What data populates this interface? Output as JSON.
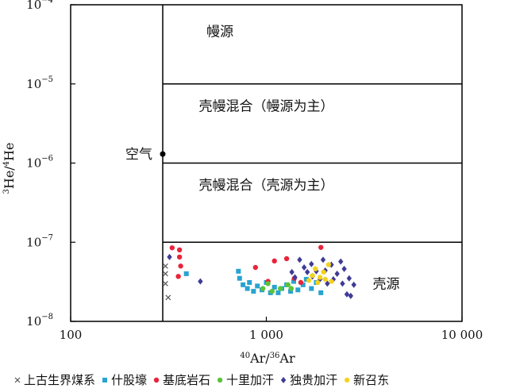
{
  "chart_data": {
    "type": "scatter",
    "x_scale": "log",
    "y_scale": "log",
    "xlim": [
      100,
      10000
    ],
    "ylim": [
      1e-08,
      0.0001
    ],
    "xlabel_parts": [
      "40",
      "Ar/",
      "36",
      "Ar"
    ],
    "ylabel_parts": [
      "3",
      "He/",
      "4",
      "He"
    ],
    "x_ticks": [
      {
        "value": 100,
        "label": "100"
      },
      {
        "value": 1000,
        "label": "1 000"
      },
      {
        "value": 10000,
        "label": "10 000"
      }
    ],
    "y_ticks": [
      {
        "value": 1e-08,
        "base": "10",
        "exp": "−8"
      },
      {
        "value": 1e-07,
        "base": "10",
        "exp": "−7"
      },
      {
        "value": 1e-06,
        "base": "10",
        "exp": "−6"
      },
      {
        "value": 1e-05,
        "base": "10",
        "exp": "−5"
      },
      {
        "value": 0.0001,
        "base": "10",
        "exp": "−4"
      }
    ],
    "air_point": {
      "label": "空气",
      "x": 295.5,
      "y": 1.3e-06
    },
    "regions": [
      {
        "label": "幔源",
        "x": 580,
        "y": 4.6e-05
      },
      {
        "label": "壳幔混合（幔源为主）",
        "x": 1000,
        "y": 5.3e-06
      },
      {
        "label": "壳幔混合（壳源为主）",
        "x": 1000,
        "y": 5.3e-07
      },
      {
        "label": "壳源",
        "x": 4100,
        "y": 3e-08
      }
    ],
    "series": [
      {
        "name": "上古生界煤系",
        "marker": "x",
        "color": "#555555",
        "points": [
          [
            305,
            5e-08
          ],
          [
            305,
            4e-08
          ],
          [
            305,
            3e-08
          ],
          [
            315,
            2e-08
          ]
        ]
      },
      {
        "name": "什股壕",
        "marker": "square",
        "color": "#29a3cf",
        "points": [
          [
            390,
            4e-08
          ],
          [
            720,
            4.3e-08
          ],
          [
            730,
            3.5e-08
          ],
          [
            760,
            2.9e-08
          ],
          [
            800,
            2.6e-08
          ],
          [
            820,
            3.1e-08
          ],
          [
            860,
            2.4e-08
          ],
          [
            900,
            2.8e-08
          ],
          [
            950,
            2.5e-08
          ],
          [
            1000,
            3.1e-08
          ],
          [
            1050,
            2.3e-08
          ],
          [
            1100,
            2.7e-08
          ],
          [
            1150,
            2.3e-08
          ],
          [
            1200,
            2.6e-08
          ],
          [
            1270,
            2.9e-08
          ],
          [
            1330,
            2.4e-08
          ],
          [
            1380,
            3.2e-08
          ],
          [
            1450,
            2.5e-08
          ],
          [
            1540,
            2.9e-08
          ],
          [
            1600,
            3.4e-08
          ],
          [
            1700,
            2.6e-08
          ],
          [
            1800,
            3.1e-08
          ],
          [
            1900,
            2.3e-08
          ]
        ]
      },
      {
        "name": "基底岩石",
        "marker": "circle",
        "color": "#e8243a",
        "points": [
          [
            330,
            8.5e-08
          ],
          [
            360,
            8e-08
          ],
          [
            360,
            6.5e-08
          ],
          [
            365,
            5e-08
          ],
          [
            355,
            3.7e-08
          ],
          [
            880,
            4.8e-08
          ],
          [
            1020,
            3.2e-08
          ],
          [
            1100,
            5.8e-08
          ],
          [
            1270,
            6.2e-08
          ],
          [
            1390,
            3.5e-08
          ],
          [
            1500,
            3.1e-08
          ],
          [
            1900,
            8.6e-08
          ]
        ]
      },
      {
        "name": "十里加汗",
        "marker": "circle",
        "color": "#5cc33a",
        "points": [
          [
            960,
            2.6e-08
          ],
          [
            1020,
            3e-08
          ],
          [
            1070,
            2.4e-08
          ],
          [
            1180,
            2.6e-08
          ],
          [
            1290,
            2.9e-08
          ],
          [
            1340,
            2.6e-08
          ]
        ]
      },
      {
        "name": "独贵加汗",
        "marker": "diamond",
        "color": "#3f3b96",
        "points": [
          [
            320,
            6.5e-08
          ],
          [
            460,
            3.2e-08
          ],
          [
            1350,
            4.2e-08
          ],
          [
            1400,
            3.6e-08
          ],
          [
            1480,
            6e-08
          ],
          [
            1560,
            4.8e-08
          ],
          [
            1620,
            4.2e-08
          ],
          [
            1700,
            5.3e-08
          ],
          [
            1720,
            3.7e-08
          ],
          [
            1800,
            4.3e-08
          ],
          [
            1880,
            3.4e-08
          ],
          [
            1950,
            6e-08
          ],
          [
            2000,
            4.4e-08
          ],
          [
            2050,
            3e-08
          ],
          [
            2150,
            5.2e-08
          ],
          [
            2200,
            3.4e-08
          ],
          [
            2300,
            4e-08
          ],
          [
            2400,
            5.7e-08
          ],
          [
            2450,
            3e-08
          ],
          [
            2500,
            4.6e-08
          ],
          [
            2580,
            2.2e-08
          ],
          [
            2650,
            3.5e-08
          ],
          [
            2700,
            2.1e-08
          ],
          [
            2800,
            2.9e-08
          ]
        ]
      },
      {
        "name": "新召东",
        "marker": "pentagon",
        "color": "#f2d21c",
        "points": [
          [
            1650,
            3.3e-08
          ],
          [
            1720,
            3.8e-08
          ],
          [
            1780,
            4.6e-08
          ],
          [
            1830,
            3.1e-08
          ],
          [
            1880,
            3.6e-08
          ],
          [
            1960,
            4.2e-08
          ],
          [
            2000,
            3.4e-08
          ],
          [
            2080,
            5.2e-08
          ],
          [
            2150,
            3.2e-08
          ]
        ]
      }
    ],
    "legend_position": "bottom"
  }
}
